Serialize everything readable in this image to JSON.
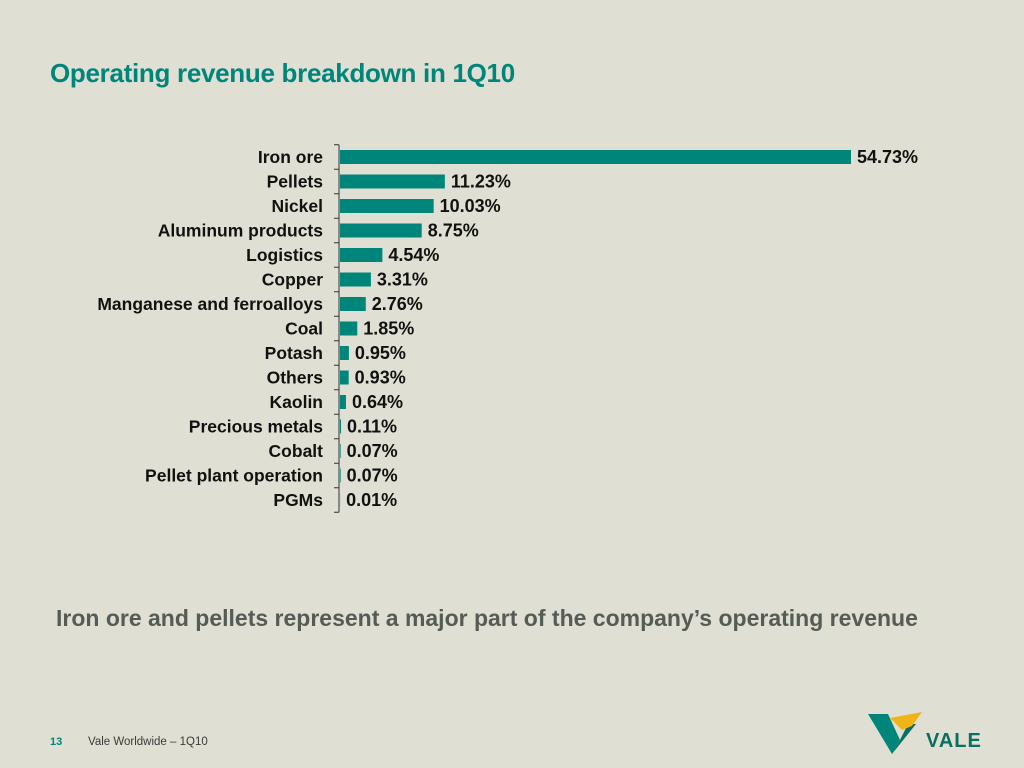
{
  "slide": {
    "title": "Operating revenue breakdown in 1Q10",
    "takeaway": "Iron ore and pellets represent a major part of the company’s operating revenue",
    "page_number": "13",
    "footer_text": "Vale Worldwide – 1Q10",
    "logo_text": "VALE"
  },
  "colors": {
    "accent": "#00857a",
    "bar": "#00857a",
    "background": "#dfe0d3",
    "takeaway_text": "#555b56",
    "logo_yellow": "#f0b416"
  },
  "chart_data": {
    "type": "bar",
    "orientation": "horizontal",
    "title": "",
    "xlabel": "",
    "ylabel": "",
    "xlim": [
      0,
      54.73
    ],
    "grid": false,
    "legend": "none",
    "categories": [
      "Iron ore",
      "Pellets",
      "Nickel",
      "Aluminum products",
      "Logistics",
      "Copper",
      "Manganese and ferroalloys",
      "Coal",
      "Potash",
      "Others",
      "Kaolin",
      "Precious metals",
      "Cobalt",
      "Pellet plant operation",
      "PGMs"
    ],
    "values": [
      54.73,
      11.23,
      10.03,
      8.75,
      4.54,
      3.31,
      2.76,
      1.85,
      0.95,
      0.93,
      0.64,
      0.11,
      0.07,
      0.07,
      0.01
    ],
    "value_labels": [
      "54.73%",
      "11.23%",
      "10.03%",
      "8.75%",
      "4.54%",
      "3.31%",
      "2.76%",
      "1.85%",
      "0.95%",
      "0.93%",
      "0.64%",
      "0.11%",
      "0.07%",
      "0.07%",
      "0.01%"
    ]
  }
}
